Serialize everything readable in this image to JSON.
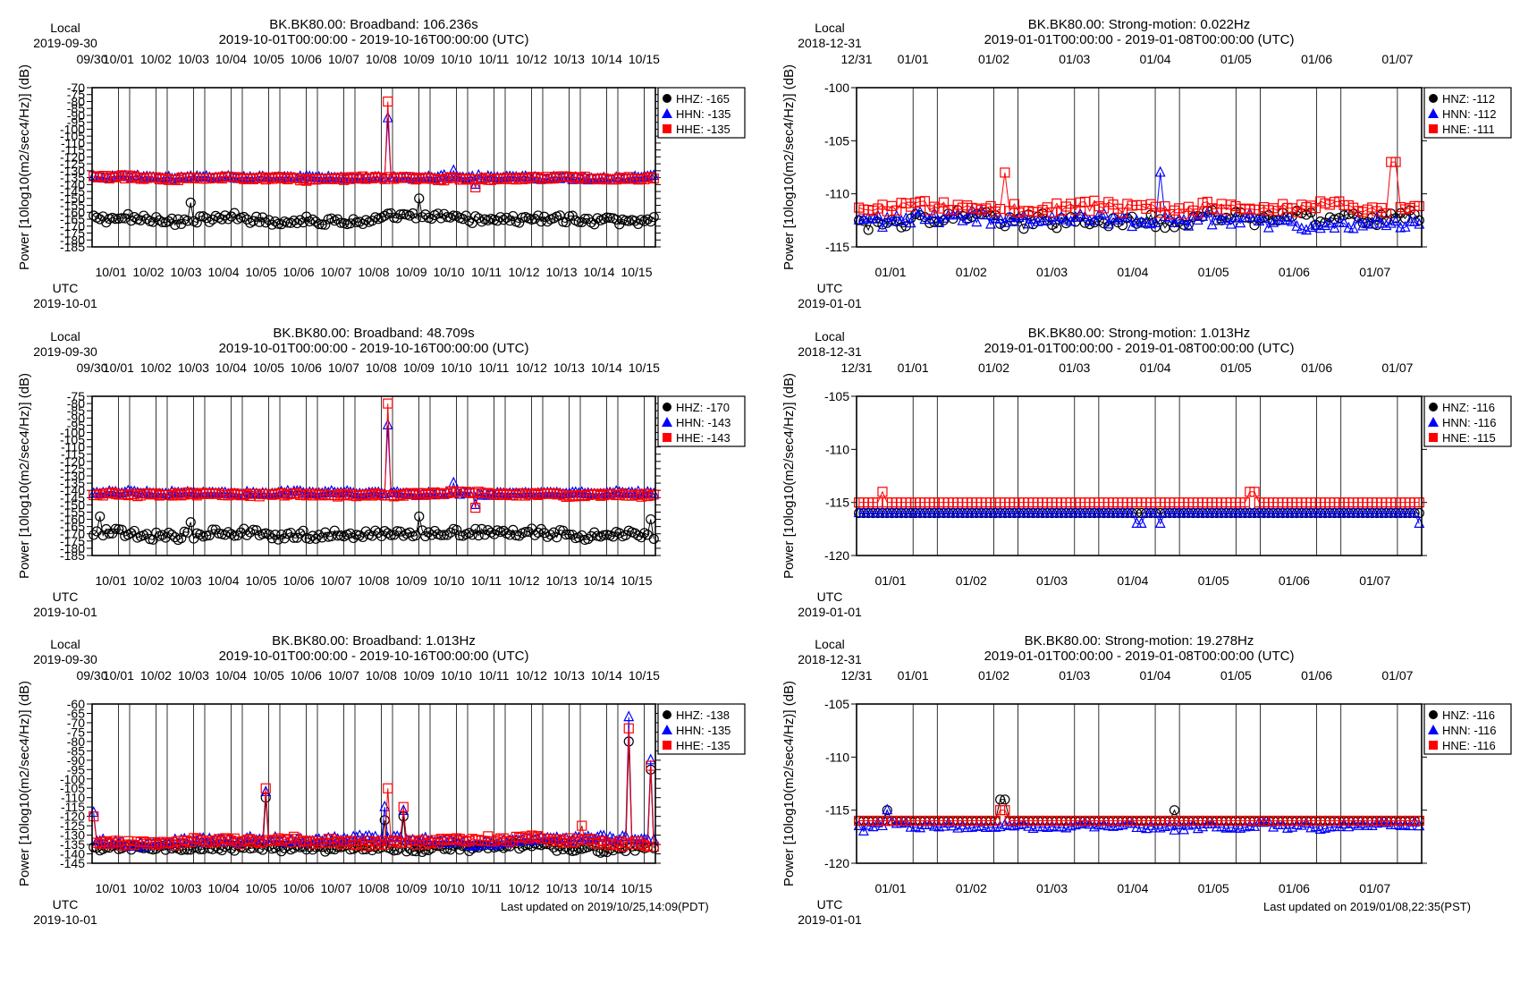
{
  "colors": {
    "HHZ": "#000000",
    "HHN": "#0000ff",
    "HHE": "#ff0000",
    "HNZ": "#000000",
    "HNN": "#0000ff",
    "HNE": "#ff0000"
  },
  "footers": [
    "Last updated on 2019/10/25,14:09(PDT)",
    "Last updated on 2019/01/08,22:35(PST)"
  ],
  "chart_data": [
    {
      "type": "scatter",
      "title": "BK.BK80.00: Broadband: 106.236s",
      "subtitle": "2019-10-01T00:00:00 - 2019-10-16T00:00:00 (UTC)",
      "ylabel": "Power [10log10(m2/sec4/Hz)] (dB)",
      "ylim": [
        -185,
        -70
      ],
      "yticks": [
        -70,
        -75,
        -80,
        -85,
        -90,
        -95,
        -100,
        -105,
        -110,
        -115,
        -120,
        -125,
        -130,
        -135,
        -140,
        -145,
        -150,
        -155,
        -160,
        -165,
        -170,
        -175,
        -180,
        -185
      ],
      "x_days": 15,
      "top_label": "Local",
      "top_date": "2019-09-30",
      "top_ticks": [
        "09/30",
        "10/01",
        "10/02",
        "10/03",
        "10/04",
        "10/05",
        "10/06",
        "10/07",
        "10/08",
        "10/09",
        "10/10",
        "10/11",
        "10/12",
        "10/13",
        "10/14",
        "10/15"
      ],
      "bottom_label": "UTC",
      "bottom_date": "2019-10-01",
      "bottom_ticks": [
        "10/01",
        "10/02",
        "10/03",
        "10/04",
        "10/05",
        "10/06",
        "10/07",
        "10/08",
        "10/09",
        "10/10",
        "10/11",
        "10/12",
        "10/13",
        "10/14",
        "10/15"
      ],
      "legend": [
        "HHZ: -165",
        "HHN: -135",
        "HHE: -135"
      ],
      "series": [
        {
          "name": "HHZ",
          "base": -165,
          "noise": 5,
          "events": [
            [
              2.6,
              -153
            ],
            [
              8.7,
              -150
            ]
          ]
        },
        {
          "name": "HHN",
          "base": -135,
          "noise": 2,
          "events": [
            [
              7.85,
              -92
            ],
            [
              9.6,
              -130
            ],
            [
              10.2,
              -140
            ]
          ]
        },
        {
          "name": "HHE",
          "base": -135,
          "noise": 2,
          "events": [
            [
              7.85,
              -80
            ],
            [
              10.2,
              -142
            ]
          ]
        }
      ]
    },
    {
      "type": "scatter",
      "title": "BK.BK80.00: Strong-motion: 0.022Hz",
      "subtitle": "2019-01-01T00:00:00 - 2019-01-08T00:00:00 (UTC)",
      "ylabel": "Power [10log10(m2/sec4/Hz)] (dB)",
      "ylim": [
        -115,
        -100
      ],
      "yticks": [
        -100,
        -105,
        -110,
        -115
      ],
      "x_days": 7,
      "top_label": "Local",
      "top_date": "2018-12-31",
      "top_ticks": [
        "12/31",
        "01/01",
        "01/02",
        "01/03",
        "01/04",
        "01/05",
        "01/06",
        "01/07"
      ],
      "bottom_label": "UTC",
      "bottom_date": "2019-01-01",
      "bottom_ticks": [
        "01/01",
        "01/02",
        "01/03",
        "01/04",
        "01/05",
        "01/06",
        "01/07"
      ],
      "legend": [
        "HNZ: -112",
        "HNN: -112",
        "HNE: -111"
      ],
      "series": [
        {
          "name": "HNZ",
          "base": -112.5,
          "noise": 1.2,
          "events": []
        },
        {
          "name": "HNN",
          "base": -112.5,
          "noise": 1.2,
          "events": [
            [
              3.75,
              -108
            ]
          ]
        },
        {
          "name": "HNE",
          "base": -111.3,
          "noise": 1,
          "events": [
            [
              1.85,
              -108
            ],
            [
              6.65,
              -107
            ]
          ]
        }
      ]
    },
    {
      "type": "scatter",
      "title": "BK.BK80.00: Broadband: 48.709s",
      "subtitle": "2019-10-01T00:00:00 - 2019-10-16T00:00:00 (UTC)",
      "ylabel": "Power [10log10(m2/sec4/Hz)] (dB)",
      "ylim": [
        -185,
        -75
      ],
      "yticks": [
        -75,
        -80,
        -85,
        -90,
        -95,
        -100,
        -105,
        -110,
        -115,
        -120,
        -125,
        -130,
        -135,
        -140,
        -145,
        -150,
        -155,
        -160,
        -165,
        -170,
        -175,
        -180,
        -185
      ],
      "x_days": 15,
      "top_label": "Local",
      "top_date": "2019-09-30",
      "top_ticks": [
        "09/30",
        "10/01",
        "10/02",
        "10/03",
        "10/04",
        "10/05",
        "10/06",
        "10/07",
        "10/08",
        "10/09",
        "10/10",
        "10/11",
        "10/12",
        "10/13",
        "10/14",
        "10/15"
      ],
      "bottom_label": "UTC",
      "bottom_date": "2019-10-01",
      "bottom_ticks": [
        "10/01",
        "10/02",
        "10/03",
        "10/04",
        "10/05",
        "10/06",
        "10/07",
        "10/08",
        "10/09",
        "10/10",
        "10/11",
        "10/12",
        "10/13",
        "10/14",
        "10/15"
      ],
      "legend": [
        "HHZ: -170",
        "HHN: -143",
        "HHE: -143"
      ],
      "series": [
        {
          "name": "HHZ",
          "base": -170,
          "noise": 5,
          "events": [
            [
              0.2,
              -158
            ],
            [
              2.6,
              -162
            ],
            [
              8.7,
              -158
            ],
            [
              14.9,
              -160
            ]
          ]
        },
        {
          "name": "HHN",
          "base": -142,
          "noise": 2,
          "events": [
            [
              7.85,
              -95
            ],
            [
              9.6,
              -135
            ],
            [
              10.2,
              -150
            ]
          ]
        },
        {
          "name": "HHE",
          "base": -143,
          "noise": 2,
          "events": [
            [
              7.85,
              -80
            ],
            [
              10.2,
              -152
            ]
          ]
        }
      ]
    },
    {
      "type": "scatter",
      "title": "BK.BK80.00: Strong-motion: 1.013Hz",
      "subtitle": "2019-01-01T00:00:00 - 2019-01-08T00:00:00 (UTC)",
      "ylabel": "Power [10log10(m2/sec4/Hz)] (dB)",
      "ylim": [
        -120,
        -105
      ],
      "yticks": [
        -105,
        -110,
        -115,
        -120
      ],
      "x_days": 7,
      "top_label": "Local",
      "top_date": "2018-12-31",
      "top_ticks": [
        "12/31",
        "01/01",
        "01/02",
        "01/03",
        "01/04",
        "01/05",
        "01/06",
        "01/07"
      ],
      "bottom_label": "UTC",
      "bottom_date": "2019-01-01",
      "bottom_ticks": [
        "01/01",
        "01/02",
        "01/03",
        "01/04",
        "01/05",
        "01/06",
        "01/07"
      ],
      "legend": [
        "HNZ: -116",
        "HNN: -116",
        "HNE: -115"
      ],
      "series": [
        {
          "name": "HNZ",
          "base": -116,
          "noise": 0,
          "events": []
        },
        {
          "name": "HNN",
          "base": -116,
          "noise": 0,
          "events": [
            [
              3.5,
              -117
            ],
            [
              3.75,
              -117
            ],
            [
              6.95,
              -117
            ]
          ]
        },
        {
          "name": "HNE",
          "base": -115,
          "noise": 0,
          "events": [
            [
              0.3,
              -114
            ],
            [
              4.9,
              -114
            ]
          ]
        }
      ]
    },
    {
      "type": "scatter",
      "title": "BK.BK80.00: Broadband: 1.013Hz",
      "subtitle": "2019-10-01T00:00:00 - 2019-10-16T00:00:00 (UTC)",
      "ylabel": "Power [10log10(m2/sec4/Hz)] (dB)",
      "ylim": [
        -145,
        -60
      ],
      "yticks": [
        -60,
        -65,
        -70,
        -75,
        -80,
        -85,
        -90,
        -95,
        -100,
        -105,
        -110,
        -115,
        -120,
        -125,
        -130,
        -135,
        -140,
        -145
      ],
      "x_days": 15,
      "top_label": "Local",
      "top_date": "2019-09-30",
      "top_ticks": [
        "09/30",
        "10/01",
        "10/02",
        "10/03",
        "10/04",
        "10/05",
        "10/06",
        "10/07",
        "10/08",
        "10/09",
        "10/10",
        "10/11",
        "10/12",
        "10/13",
        "10/14",
        "10/15"
      ],
      "bottom_label": "UTC",
      "bottom_date": "2019-10-01",
      "bottom_ticks": [
        "10/01",
        "10/02",
        "10/03",
        "10/04",
        "10/05",
        "10/06",
        "10/07",
        "10/08",
        "10/09",
        "10/10",
        "10/11",
        "10/12",
        "10/13",
        "10/14",
        "10/15"
      ],
      "legend": [
        "HHZ: -138",
        "HHN: -135",
        "HHE: -135"
      ],
      "series": [
        {
          "name": "HHZ",
          "base": -137,
          "noise": 3,
          "events": [
            [
              4.6,
              -110
            ],
            [
              7.8,
              -122
            ],
            [
              8.3,
              -120
            ],
            [
              14.3,
              -80
            ],
            [
              14.9,
              -95
            ]
          ]
        },
        {
          "name": "HHN",
          "base": -133,
          "noise": 3,
          "events": [
            [
              0.05,
              -118
            ],
            [
              4.6,
              -107
            ],
            [
              7.8,
              -115
            ],
            [
              8.3,
              -117
            ],
            [
              14.3,
              -67
            ],
            [
              14.9,
              -90
            ]
          ]
        },
        {
          "name": "HHE",
          "base": -134,
          "noise": 3,
          "events": [
            [
              0.05,
              -120
            ],
            [
              4.6,
              -105
            ],
            [
              7.85,
              -105
            ],
            [
              8.3,
              -115
            ],
            [
              13.05,
              -125
            ],
            [
              14.3,
              -73
            ],
            [
              14.9,
              -93
            ]
          ]
        }
      ]
    },
    {
      "type": "scatter",
      "title": "BK.BK80.00: Strong-motion: 19.278Hz",
      "subtitle": "2019-01-01T00:00:00 - 2019-01-08T00:00:00 (UTC)",
      "ylabel": "Power [10log10(m2/sec4/Hz)] (dB)",
      "ylim": [
        -120,
        -105
      ],
      "yticks": [
        -105,
        -110,
        -115,
        -120
      ],
      "x_days": 7,
      "top_label": "Local",
      "top_date": "2018-12-31",
      "top_ticks": [
        "12/31",
        "01/01",
        "01/02",
        "01/03",
        "01/04",
        "01/05",
        "01/06",
        "01/07"
      ],
      "bottom_label": "UTC",
      "bottom_date": "2019-01-01",
      "bottom_ticks": [
        "01/01",
        "01/02",
        "01/03",
        "01/04",
        "01/05",
        "01/06",
        "01/07"
      ],
      "legend": [
        "HNZ: -116",
        "HNN: -116",
        "HNE: -116"
      ],
      "series": [
        {
          "name": "HNZ",
          "base": -116,
          "noise": 0,
          "events": [
            [
              0.4,
              -115
            ],
            [
              1.8,
              -114
            ],
            [
              1.85,
              -114
            ],
            [
              3.95,
              -115
            ]
          ]
        },
        {
          "name": "HNN",
          "base": -116.5,
          "noise": 0.5,
          "events": [
            [
              0.1,
              -117
            ],
            [
              0.4,
              -115
            ]
          ]
        },
        {
          "name": "HNE",
          "base": -116,
          "noise": 0,
          "events": [
            [
              1.8,
              -115
            ],
            [
              1.85,
              -115
            ]
          ]
        }
      ]
    }
  ]
}
